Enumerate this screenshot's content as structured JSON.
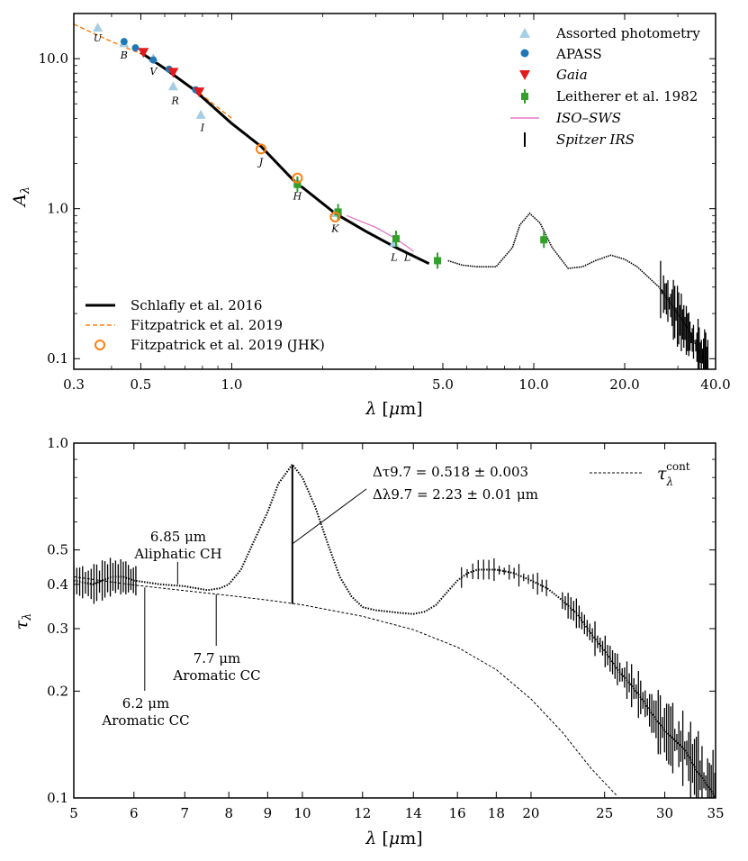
{
  "chart_data": [
    {
      "type": "line",
      "xscale": "log",
      "yscale": "log",
      "xlabel": "λ [μm]",
      "ylabel": "A_λ",
      "xlim": [
        0.3,
        40.0
      ],
      "ylim": [
        0.085,
        20.0
      ],
      "xtick_values": [
        0.3,
        0.5,
        1.0,
        5.0,
        10.0,
        20.0,
        40.0
      ],
      "xtick_labels": [
        "0.3",
        "0.5",
        "1.0",
        "5.0",
        "10.0",
        "20.0",
        "40.0"
      ],
      "ytick_values": [
        0.1,
        1.0,
        10.0
      ],
      "ytick_labels": [
        "0.1",
        "1.0",
        "10.0"
      ],
      "legend_upper_right": [
        {
          "label": "Assorted photometry",
          "color": "#a6cee3",
          "marker": "triangle-up"
        },
        {
          "label": "APASS",
          "color": "#1f78b4",
          "marker": "circle"
        },
        {
          "label": "Gaia",
          "color": "#e31a1c",
          "marker": "triangle-down"
        },
        {
          "label": "Leitherer et al. 1982",
          "color": "#33a02c",
          "marker": "square-errorbar"
        },
        {
          "label": "ISO–SWS",
          "color": "#e377c2",
          "marker": "line"
        },
        {
          "label": "Spitzer IRS",
          "color": "#000000",
          "marker": "vline"
        }
      ],
      "legend_lower_left": [
        {
          "label": "Schlafly et al. 2016",
          "color": "#000000",
          "marker": "thick-line"
        },
        {
          "label": "Fitzpatrick et al. 2019",
          "color": "#ff7f0e",
          "marker": "dashed"
        },
        {
          "label": "Fitzpatrick et al. 2019 (JHK)",
          "color": "#ff7f0e",
          "marker": "open-circle"
        }
      ],
      "series": [
        {
          "name": "Schlafly et al. 2016",
          "x": [
            0.5,
            0.6,
            0.75,
            1.0,
            1.25,
            1.6,
            2.2,
            2.8,
            3.5,
            4.5
          ],
          "y": [
            11.0,
            8.6,
            6.2,
            3.7,
            2.6,
            1.55,
            0.93,
            0.7,
            0.55,
            0.43
          ]
        },
        {
          "name": "Fitzpatrick et al. 2019",
          "x": [
            0.3,
            0.4,
            0.5,
            0.6,
            0.75,
            1.0
          ],
          "y": [
            17.0,
            13.0,
            10.8,
            8.6,
            6.3,
            4.0
          ]
        },
        {
          "name": "Fitzpatrick et al. 2019 (JHK)",
          "x": [
            1.25,
            1.65,
            2.2
          ],
          "y": [
            2.5,
            1.6,
            0.88
          ]
        },
        {
          "name": "Assorted photometry",
          "x": [
            0.36,
            0.44,
            0.55,
            0.64,
            0.79,
            1.65,
            2.2,
            3.45
          ],
          "y": [
            16.0,
            12.6,
            10.0,
            6.5,
            4.2,
            1.5,
            0.93,
            0.59
          ]
        },
        {
          "name": "APASS",
          "x": [
            0.44,
            0.48,
            0.55,
            0.62,
            0.76
          ],
          "y": [
            13.0,
            11.8,
            9.8,
            8.5,
            6.2
          ]
        },
        {
          "name": "Gaia",
          "x": [
            0.51,
            0.64,
            0.78
          ],
          "y": [
            11.0,
            8.1,
            6.0
          ]
        },
        {
          "name": "Leitherer et al. 1982",
          "x": [
            1.65,
            2.25,
            3.5,
            4.8,
            10.8
          ],
          "y": [
            1.45,
            0.95,
            0.63,
            0.45,
            0.62
          ]
        },
        {
          "name": "ISO–SWS",
          "x": [
            2.4,
            3.0,
            3.5,
            4.0
          ],
          "y": [
            0.9,
            0.75,
            0.63,
            0.52
          ]
        },
        {
          "name": "Spitzer IRS",
          "x": [
            5.2,
            5.8,
            6.5,
            7.5,
            8.5,
            9.0,
            9.7,
            10.5,
            11.5,
            13.0,
            14.5,
            16.0,
            18.0,
            20.0,
            22.0,
            26.0,
            30.0,
            33.0,
            36.0
          ],
          "y": [
            0.45,
            0.42,
            0.41,
            0.41,
            0.55,
            0.78,
            0.93,
            0.8,
            0.55,
            0.4,
            0.41,
            0.45,
            0.49,
            0.46,
            0.41,
            0.3,
            0.2,
            0.15,
            0.1
          ]
        }
      ],
      "band_labels": [
        {
          "text": "U",
          "x": 0.36,
          "y": 13.0
        },
        {
          "text": "B",
          "x": 0.44,
          "y": 10.0
        },
        {
          "text": "V",
          "x": 0.55,
          "y": 7.8
        },
        {
          "text": "R",
          "x": 0.65,
          "y": 5.0
        },
        {
          "text": "I",
          "x": 0.8,
          "y": 3.3
        },
        {
          "text": "J",
          "x": 1.25,
          "y": 1.95
        },
        {
          "text": "H",
          "x": 1.65,
          "y": 1.15
        },
        {
          "text": "K",
          "x": 2.2,
          "y": 0.7
        },
        {
          "text": "L",
          "x": 3.45,
          "y": 0.45
        },
        {
          "text": "L′",
          "x": 3.85,
          "y": 0.45
        }
      ]
    },
    {
      "type": "line",
      "xscale": "log",
      "yscale": "log",
      "xlabel": "λ [μm]",
      "ylabel": "τ_λ",
      "xlim": [
        5.0,
        35.0
      ],
      "ylim": [
        0.1,
        1.0
      ],
      "xtick_values": [
        5,
        6,
        7,
        8,
        9,
        10,
        12,
        14,
        16,
        18,
        20,
        25,
        30,
        35
      ],
      "xtick_labels": [
        "5",
        "6",
        "7",
        "8",
        "9",
        "10",
        "12",
        "14",
        "16",
        "18",
        "20",
        "25",
        "30",
        "35"
      ],
      "ytick_values": [
        0.1,
        0.2,
        0.3,
        0.4,
        0.5,
        1.0
      ],
      "ytick_labels": [
        "0.1",
        "0.2",
        "0.3",
        "0.4",
        "0.5",
        "1.0"
      ],
      "legend": {
        "label": "τ_λ^cont",
        "style": "dashed",
        "placement": "top-right"
      },
      "annotations": {
        "delta_tau": "Δτ9.7 = 0.518 ± 0.003",
        "delta_lambda": "Δλ9.7 = 2.23 ± 0.01 μm",
        "aliphatic_wave": "6.85 μm",
        "aliphatic_name": "Aliphatic CH",
        "arom77_wave": "7.7 μm",
        "arom77_name": "Aromatic CC",
        "arom62_wave": "6.2 μm",
        "arom62_name": "Aromatic CC"
      },
      "continuum": {
        "x": [
          5,
          6,
          7,
          8,
          9,
          10,
          12,
          14,
          16,
          18,
          20,
          22,
          24,
          26
        ],
        "y": [
          0.42,
          0.398,
          0.384,
          0.372,
          0.361,
          0.35,
          0.325,
          0.298,
          0.266,
          0.23,
          0.19,
          0.153,
          0.121,
          0.101
        ]
      },
      "optical_depth": {
        "x": [
          5.0,
          5.3,
          5.6,
          5.8,
          6.0,
          6.5,
          7.0,
          7.5,
          7.8,
          8.0,
          8.3,
          8.6,
          9.0,
          9.3,
          9.7,
          10.0,
          10.4,
          10.8,
          11.2,
          11.6,
          12.0,
          12.5,
          13.0,
          13.5,
          14.0,
          14.5,
          15.0,
          15.5,
          16.0,
          16.5,
          17.0,
          17.5,
          18.0,
          19.0,
          20.0,
          21.0,
          22.0,
          23.0,
          24.0,
          25.0,
          26.0,
          27.0,
          28.0,
          29.0,
          30.0,
          31.0,
          32.0,
          33.0,
          34.0,
          35.0
        ],
        "y": [
          0.41,
          0.4,
          0.42,
          0.42,
          0.41,
          0.4,
          0.395,
          0.385,
          0.39,
          0.4,
          0.44,
          0.52,
          0.64,
          0.77,
          0.87,
          0.8,
          0.66,
          0.52,
          0.42,
          0.37,
          0.345,
          0.338,
          0.335,
          0.332,
          0.33,
          0.335,
          0.35,
          0.38,
          0.41,
          0.43,
          0.44,
          0.44,
          0.44,
          0.43,
          0.41,
          0.39,
          0.36,
          0.33,
          0.29,
          0.26,
          0.23,
          0.21,
          0.19,
          0.17,
          0.155,
          0.145,
          0.135,
          0.12,
          0.11,
          0.1
        ]
      }
    }
  ]
}
